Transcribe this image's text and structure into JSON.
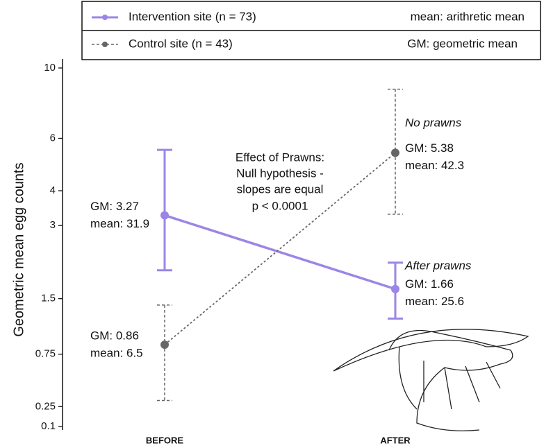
{
  "chart_data": {
    "type": "line",
    "y_label": "Geometric mean egg counts",
    "categories": [
      "BEFORE",
      "AFTER"
    ],
    "yscale": "log1p",
    "ylim": [
      0.1,
      10
    ],
    "yticks": [
      0.1,
      0.25,
      0.75,
      1.5,
      3,
      4,
      6,
      10
    ],
    "series": [
      {
        "name": "Intervention site (n = 73)",
        "color": "#9b86e6",
        "dashed": false,
        "values": [
          3.27,
          1.66
        ],
        "value_labels": [
          "GM: 3.27",
          "GM: 1.66"
        ],
        "means": [
          31.9,
          25.6
        ],
        "mean_labels": [
          "mean: 31.9",
          "mean: 25.6"
        ],
        "upper": [
          5.5,
          2.15
        ],
        "lower": [
          2.0,
          1.2
        ]
      },
      {
        "name": "Control site (n = 43)",
        "color": "#666666",
        "dashed": true,
        "values": [
          0.86,
          5.38
        ],
        "value_labels": [
          "GM: 0.86",
          "GM: 5.38"
        ],
        "means": [
          6.5,
          42.3
        ],
        "mean_labels": [
          "mean: 6.5",
          "mean: 42.3"
        ],
        "upper": [
          1.4,
          8.6
        ],
        "lower": [
          0.3,
          3.3
        ]
      }
    ],
    "legend_notes": [
      "mean: arithretic mean",
      "GM: geometric mean"
    ],
    "annotations": {
      "effect": [
        "Effect of Prawns:",
        "Null hypothesis -",
        "slopes are equal",
        "p < 0.0001"
      ],
      "no_prawns": "No prawns",
      "after_prawns": "After prawns"
    }
  }
}
